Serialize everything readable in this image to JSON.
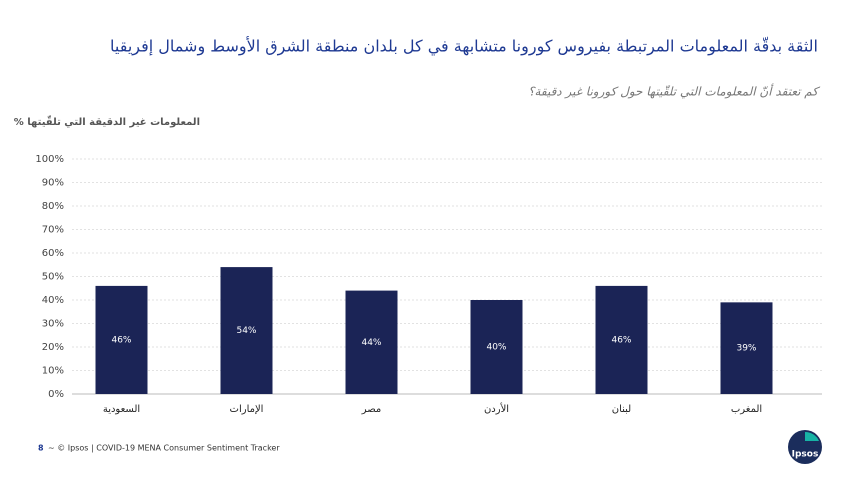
{
  "chart_data": {
    "type": "bar",
    "title": "الثقة بدقّة المعلومات المرتبطة بفيروس كورونا متشابهة في كل بلدان منطقة الشرق الأوسط وشمال إفريقيا",
    "subtitle": "كم تعتقد أنّ المعلومات التي تلقّيتها حول كورونا غير دقيقة؟",
    "y_label": "% المعلومات غير الدقيقة التي تلقّيتها",
    "categories": [
      "السعودية",
      "الإمارات",
      "مصر",
      "الأردن",
      "لبنان",
      "المغرب"
    ],
    "values": [
      46,
      54,
      44,
      40,
      46,
      39
    ],
    "value_labels": [
      "46%",
      "54%",
      "44%",
      "40%",
      "46%",
      "39%"
    ],
    "color": "#1b2456",
    "ylim": [
      0,
      100
    ],
    "yticks": [
      {
        "value": 0,
        "label": "0%"
      },
      {
        "value": 10,
        "label": "10%"
      },
      {
        "value": 20,
        "label": "20%"
      },
      {
        "value": 30,
        "label": "30%"
      },
      {
        "value": 40,
        "label": "40%"
      },
      {
        "value": 50,
        "label": "50%"
      },
      {
        "value": 60,
        "label": "60%"
      },
      {
        "value": 70,
        "label": "70%"
      },
      {
        "value": 80,
        "label": "80%"
      },
      {
        "value": 90,
        "label": "90%"
      },
      {
        "value": 100,
        "label": "100%"
      }
    ],
    "grid": true
  },
  "footer": {
    "page": "8",
    "text": "~ © Ipsos | COVID-19 MENA Consumer Sentiment Tracker",
    "logo": "Ipsos"
  }
}
